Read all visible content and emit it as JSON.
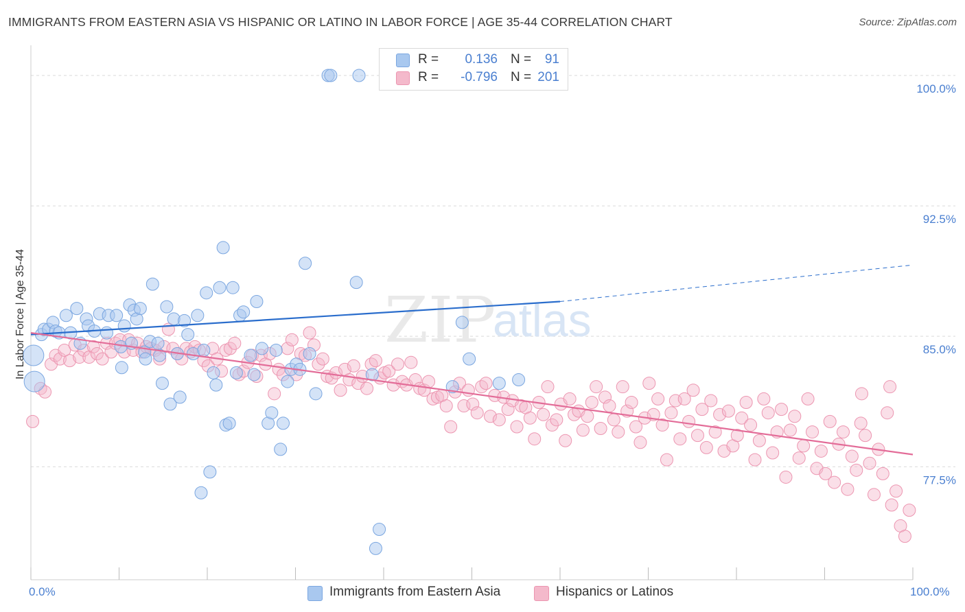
{
  "header": {
    "title": "IMMIGRANTS FROM EASTERN ASIA VS HISPANIC OR LATINO IN LABOR FORCE | AGE 35-44 CORRELATION CHART",
    "source": "Source: ZipAtlas.com"
  },
  "watermark": {
    "zip": "ZIP",
    "atlas": "atlas"
  },
  "legend": {
    "rows": [
      {
        "r_label": "R =",
        "r_value": "0.136",
        "n_label": "N =",
        "n_value": "91"
      },
      {
        "r_label": "R =",
        "r_value": "-0.796",
        "n_label": "N =",
        "n_value": "201"
      }
    ]
  },
  "bottom_legend": {
    "series1": "Immigrants from Eastern Asia",
    "series2": "Hispanics or Latinos"
  },
  "colors": {
    "blue_fill": "#a9c8ef",
    "blue_stroke": "#7aa6e0",
    "blue_line": "#2a6dcc",
    "pink_fill": "#f4b9cb",
    "pink_stroke": "#ec95b0",
    "pink_line": "#e36c98",
    "tick_text": "#4a7fd0",
    "grid": "#d9d9d9"
  },
  "chart_data": {
    "type": "scatter",
    "title": "IMMIGRANTS FROM EASTERN ASIA VS HISPANIC OR LATINO IN LABOR FORCE | AGE 35-44 CORRELATION CHART",
    "ylabel": "In Labor Force | Age 35-44",
    "xlabel": "",
    "xlim": [
      0,
      100
    ],
    "ylim": [
      71.0,
      101.5
    ],
    "x_tick_labels": [
      "0.0%",
      "100.0%"
    ],
    "y_ticks": [
      77.5,
      85.0,
      92.5,
      100.0
    ],
    "y_tick_labels": [
      "77.5%",
      "85.0%",
      "92.5%",
      "100.0%"
    ],
    "grid": true,
    "legend_position": "top-center",
    "series": [
      {
        "name": "Immigrants from Eastern Asia",
        "R": 0.136,
        "N": 91,
        "trend": {
          "x": [
            0,
            60
          ],
          "y": [
            85.1,
            87.0
          ],
          "dashed_extension": {
            "x": [
              60,
              100
            ],
            "y": [
              87.0,
              89.1
            ]
          }
        },
        "points": [
          [
            0.3,
            83.9
          ],
          [
            0.4,
            82.4
          ],
          [
            1.2,
            85.1
          ],
          [
            1.5,
            85.4
          ],
          [
            2.0,
            85.4
          ],
          [
            2.5,
            85.8
          ],
          [
            2.8,
            85.3
          ],
          [
            3.2,
            85.2
          ],
          [
            4.0,
            86.2
          ],
          [
            4.5,
            85.2
          ],
          [
            5.2,
            86.6
          ],
          [
            5.6,
            84.6
          ],
          [
            6.3,
            86.0
          ],
          [
            6.5,
            85.6
          ],
          [
            7.2,
            85.3
          ],
          [
            7.8,
            86.3
          ],
          [
            8.6,
            85.2
          ],
          [
            8.8,
            86.2
          ],
          [
            9.7,
            86.2
          ],
          [
            10.2,
            84.4
          ],
          [
            10.3,
            83.2
          ],
          [
            10.6,
            85.6
          ],
          [
            11.2,
            86.8
          ],
          [
            11.4,
            84.6
          ],
          [
            11.7,
            86.5
          ],
          [
            12.0,
            86.0
          ],
          [
            12.4,
            86.6
          ],
          [
            12.9,
            84.1
          ],
          [
            13.0,
            83.7
          ],
          [
            13.5,
            84.7
          ],
          [
            13.8,
            88.0
          ],
          [
            14.4,
            84.6
          ],
          [
            14.6,
            83.9
          ],
          [
            14.9,
            82.3
          ],
          [
            15.4,
            86.7
          ],
          [
            15.8,
            81.1
          ],
          [
            16.2,
            86.0
          ],
          [
            16.6,
            84.0
          ],
          [
            16.9,
            81.5
          ],
          [
            17.4,
            85.9
          ],
          [
            17.8,
            85.1
          ],
          [
            18.4,
            84.0
          ],
          [
            18.9,
            86.2
          ],
          [
            19.3,
            76.0
          ],
          [
            19.6,
            84.2
          ],
          [
            19.9,
            87.5
          ],
          [
            20.3,
            77.2
          ],
          [
            20.7,
            82.9
          ],
          [
            21.0,
            82.2
          ],
          [
            21.4,
            87.8
          ],
          [
            21.8,
            90.1
          ],
          [
            22.1,
            79.9
          ],
          [
            22.5,
            80.0
          ],
          [
            22.9,
            87.8
          ],
          [
            23.3,
            82.9
          ],
          [
            23.7,
            86.2
          ],
          [
            24.1,
            86.4
          ],
          [
            24.9,
            83.9
          ],
          [
            25.3,
            82.8
          ],
          [
            25.6,
            87.0
          ],
          [
            26.2,
            84.3
          ],
          [
            26.9,
            80.0
          ],
          [
            27.3,
            80.6
          ],
          [
            27.8,
            84.2
          ],
          [
            28.3,
            78.5
          ],
          [
            28.6,
            80.0
          ],
          [
            29.1,
            82.4
          ],
          [
            29.5,
            83.1
          ],
          [
            30.1,
            83.4
          ],
          [
            30.5,
            83.1
          ],
          [
            31.1,
            89.2
          ],
          [
            31.6,
            84.0
          ],
          [
            32.3,
            81.7
          ],
          [
            33.7,
            100.0
          ],
          [
            34.0,
            100.0
          ],
          [
            36.9,
            88.1
          ],
          [
            37.2,
            100.0
          ],
          [
            38.7,
            82.8
          ],
          [
            39.1,
            72.8
          ],
          [
            39.5,
            73.9
          ],
          [
            47.8,
            82.1
          ],
          [
            48.9,
            85.8
          ],
          [
            49.7,
            83.7
          ],
          [
            53.1,
            82.3
          ],
          [
            55.3,
            82.5
          ]
        ]
      },
      {
        "name": "Hispanics or Latinos",
        "R": -0.796,
        "N": 201,
        "trend": {
          "x": [
            0,
            100
          ],
          "y": [
            85.2,
            78.2
          ]
        },
        "points": [
          [
            0.2,
            80.1
          ],
          [
            1.1,
            82.0
          ],
          [
            1.6,
            81.8
          ],
          [
            2.3,
            83.4
          ],
          [
            2.8,
            83.9
          ],
          [
            3.3,
            83.7
          ],
          [
            3.8,
            84.2
          ],
          [
            4.4,
            83.6
          ],
          [
            5.0,
            84.5
          ],
          [
            5.5,
            83.8
          ],
          [
            6.0,
            84.2
          ],
          [
            6.6,
            83.8
          ],
          [
            7.1,
            84.4
          ],
          [
            7.5,
            84.0
          ],
          [
            8.1,
            83.7
          ],
          [
            8.6,
            84.6
          ],
          [
            9.1,
            84.1
          ],
          [
            9.6,
            84.6
          ],
          [
            10.1,
            84.8
          ],
          [
            10.6,
            84.1
          ],
          [
            11.1,
            84.8
          ],
          [
            11.6,
            84.2
          ],
          [
            12.1,
            84.6
          ],
          [
            12.6,
            84.1
          ],
          [
            13.1,
            84.4
          ],
          [
            13.6,
            84.3
          ],
          [
            14.1,
            84.2
          ],
          [
            14.6,
            83.7
          ],
          [
            15.1,
            84.4
          ],
          [
            15.6,
            85.4
          ],
          [
            16.1,
            84.3
          ],
          [
            16.6,
            84.0
          ],
          [
            17.1,
            83.7
          ],
          [
            17.6,
            84.3
          ],
          [
            18.1,
            84.1
          ],
          [
            18.6,
            84.4
          ],
          [
            19.1,
            84.2
          ],
          [
            19.6,
            83.6
          ],
          [
            20.1,
            83.3
          ],
          [
            20.6,
            84.3
          ],
          [
            21.1,
            83.7
          ],
          [
            21.6,
            83.0
          ],
          [
            22.1,
            84.2
          ],
          [
            22.6,
            84.3
          ],
          [
            23.1,
            84.6
          ],
          [
            23.6,
            82.8
          ],
          [
            24.1,
            83.0
          ],
          [
            24.6,
            83.5
          ],
          [
            25.1,
            83.9
          ],
          [
            25.6,
            82.7
          ],
          [
            26.1,
            83.9
          ],
          [
            26.6,
            83.4
          ],
          [
            27.1,
            84.0
          ],
          [
            27.6,
            81.7
          ],
          [
            28.1,
            83.1
          ],
          [
            28.6,
            82.8
          ],
          [
            29.1,
            84.3
          ],
          [
            29.6,
            84.8
          ],
          [
            30.1,
            82.8
          ],
          [
            30.6,
            84.0
          ],
          [
            31.1,
            83.9
          ],
          [
            31.6,
            85.2
          ],
          [
            32.1,
            84.5
          ],
          [
            32.6,
            83.4
          ],
          [
            33.1,
            83.7
          ],
          [
            33.6,
            82.7
          ],
          [
            34.1,
            82.6
          ],
          [
            34.6,
            82.9
          ],
          [
            35.1,
            81.9
          ],
          [
            35.6,
            83.1
          ],
          [
            36.1,
            82.5
          ],
          [
            36.6,
            83.3
          ],
          [
            37.1,
            82.3
          ],
          [
            37.6,
            82.7
          ],
          [
            38.1,
            82.0
          ],
          [
            38.6,
            83.4
          ],
          [
            39.1,
            83.6
          ],
          [
            39.6,
            82.6
          ],
          [
            40.1,
            82.9
          ],
          [
            40.6,
            83.0
          ],
          [
            41.1,
            82.2
          ],
          [
            41.6,
            83.4
          ],
          [
            42.1,
            82.4
          ],
          [
            42.6,
            82.2
          ],
          [
            43.1,
            83.5
          ],
          [
            43.6,
            82.5
          ],
          [
            44.1,
            82.0
          ],
          [
            44.6,
            81.9
          ],
          [
            45.1,
            82.4
          ],
          [
            45.6,
            81.4
          ],
          [
            46.1,
            81.5
          ],
          [
            46.6,
            81.6
          ],
          [
            47.1,
            81.0
          ],
          [
            47.6,
            79.8
          ],
          [
            48.1,
            81.8
          ],
          [
            48.6,
            82.3
          ],
          [
            49.1,
            81.0
          ],
          [
            49.6,
            81.9
          ],
          [
            50.1,
            81.1
          ],
          [
            50.6,
            80.6
          ],
          [
            51.1,
            82.1
          ],
          [
            51.6,
            82.3
          ],
          [
            52.1,
            80.4
          ],
          [
            52.6,
            81.6
          ],
          [
            53.1,
            80.2
          ],
          [
            53.6,
            81.5
          ],
          [
            54.1,
            80.8
          ],
          [
            54.6,
            81.3
          ],
          [
            55.1,
            79.8
          ],
          [
            55.6,
            81.0
          ],
          [
            56.1,
            80.9
          ],
          [
            56.6,
            80.3
          ],
          [
            57.1,
            79.1
          ],
          [
            57.6,
            81.2
          ],
          [
            58.1,
            80.5
          ],
          [
            58.6,
            82.1
          ],
          [
            59.1,
            79.9
          ],
          [
            59.6,
            80.2
          ],
          [
            60.1,
            81.1
          ],
          [
            60.6,
            79.0
          ],
          [
            61.1,
            81.4
          ],
          [
            61.6,
            80.5
          ],
          [
            62.1,
            80.7
          ],
          [
            62.6,
            79.6
          ],
          [
            63.1,
            80.4
          ],
          [
            63.6,
            81.2
          ],
          [
            64.1,
            82.1
          ],
          [
            64.6,
            79.7
          ],
          [
            65.1,
            81.5
          ],
          [
            65.6,
            81.0
          ],
          [
            66.1,
            80.2
          ],
          [
            66.6,
            79.5
          ],
          [
            67.1,
            82.1
          ],
          [
            67.6,
            80.7
          ],
          [
            68.1,
            81.2
          ],
          [
            68.6,
            79.8
          ],
          [
            69.1,
            78.9
          ],
          [
            69.6,
            80.3
          ],
          [
            70.1,
            82.3
          ],
          [
            70.6,
            80.5
          ],
          [
            71.1,
            81.4
          ],
          [
            71.6,
            79.9
          ],
          [
            72.1,
            77.9
          ],
          [
            72.6,
            80.6
          ],
          [
            73.1,
            81.3
          ],
          [
            73.6,
            79.1
          ],
          [
            74.1,
            81.4
          ],
          [
            74.6,
            80.1
          ],
          [
            75.1,
            81.9
          ],
          [
            75.6,
            79.3
          ],
          [
            76.1,
            80.8
          ],
          [
            76.6,
            78.6
          ],
          [
            77.1,
            81.3
          ],
          [
            77.6,
            79.5
          ],
          [
            78.1,
            80.5
          ],
          [
            78.6,
            78.4
          ],
          [
            79.1,
            80.7
          ],
          [
            79.6,
            78.7
          ],
          [
            80.1,
            79.3
          ],
          [
            80.6,
            80.3
          ],
          [
            81.1,
            81.2
          ],
          [
            81.6,
            79.9
          ],
          [
            82.1,
            77.9
          ],
          [
            82.6,
            79.0
          ],
          [
            83.1,
            81.4
          ],
          [
            83.6,
            80.6
          ],
          [
            84.1,
            78.3
          ],
          [
            84.6,
            79.5
          ],
          [
            85.1,
            80.8
          ],
          [
            85.6,
            76.9
          ],
          [
            86.1,
            79.6
          ],
          [
            86.6,
            80.4
          ],
          [
            87.1,
            78.0
          ],
          [
            87.6,
            78.7
          ],
          [
            88.1,
            81.4
          ],
          [
            88.6,
            79.5
          ],
          [
            89.1,
            77.4
          ],
          [
            89.6,
            78.4
          ],
          [
            90.1,
            77.1
          ],
          [
            90.6,
            80.1
          ],
          [
            91.1,
            76.6
          ],
          [
            91.6,
            78.8
          ],
          [
            92.1,
            79.5
          ],
          [
            92.6,
            76.2
          ],
          [
            93.1,
            78.1
          ],
          [
            93.6,
            77.3
          ],
          [
            94.1,
            80.0
          ],
          [
            94.6,
            79.3
          ],
          [
            95.1,
            77.7
          ],
          [
            95.6,
            75.9
          ],
          [
            96.1,
            78.5
          ],
          [
            96.6,
            77.1
          ],
          [
            97.1,
            80.6
          ],
          [
            97.6,
            75.3
          ],
          [
            98.1,
            76.1
          ],
          [
            98.6,
            74.1
          ],
          [
            99.1,
            73.5
          ],
          [
            99.6,
            75.0
          ],
          [
            97.4,
            82.1
          ],
          [
            94.2,
            81.7
          ]
        ]
      }
    ]
  }
}
